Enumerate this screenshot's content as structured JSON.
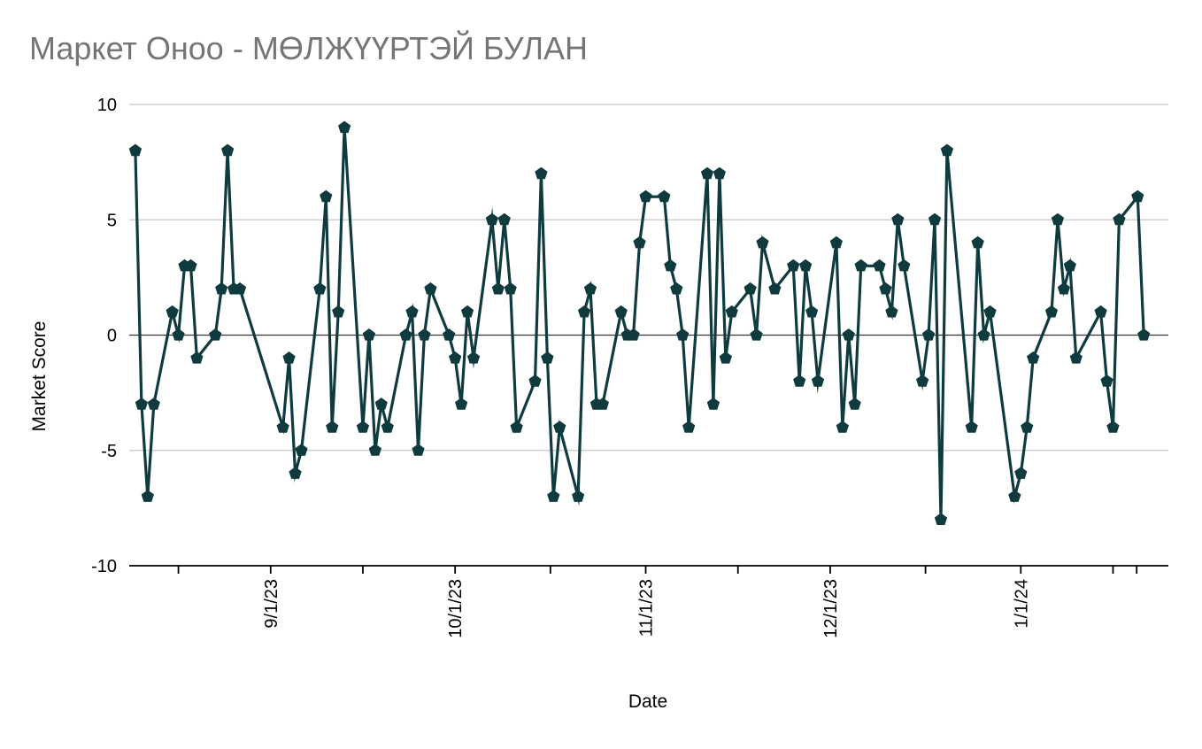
{
  "chart_data": {
    "type": "line",
    "title": "Маркет Оноо - МӨЛЖҮҮРТЭЙ БУЛАН",
    "xlabel": "Date",
    "ylabel": "Market Score",
    "ylim": [
      -10,
      10
    ],
    "y_ticks": [
      10,
      5,
      0,
      -5,
      -10
    ],
    "x_tick_labels": [
      "9/1/23",
      "10/1/23",
      "11/1/23",
      "12/1/23",
      "1/1/24"
    ],
    "x_tick_dates": [
      "2023-09-01",
      "2023-10-01",
      "2023-11-01",
      "2023-12-01",
      "2024-01-01"
    ],
    "x_range": [
      "2023-08-09",
      "2024-01-25"
    ],
    "grid": true,
    "marker": "pentagon",
    "series_color": "#0f3b3f",
    "points": [
      [
        "2023-08-10",
        8
      ],
      [
        "2023-08-11",
        -3
      ],
      [
        "2023-08-12",
        -7
      ],
      [
        "2023-08-13",
        -3
      ],
      [
        "2023-08-16",
        1
      ],
      [
        "2023-08-17",
        0
      ],
      [
        "2023-08-18",
        3
      ],
      [
        "2023-08-19",
        3
      ],
      [
        "2023-08-20",
        -1
      ],
      [
        "2023-08-23",
        0
      ],
      [
        "2023-08-24",
        2
      ],
      [
        "2023-08-25",
        8
      ],
      [
        "2023-08-26",
        2
      ],
      [
        "2023-08-27",
        2
      ],
      [
        "2023-09-03",
        -4
      ],
      [
        "2023-09-04",
        -1
      ],
      [
        "2023-09-05",
        -6
      ],
      [
        "2023-09-06",
        -5
      ],
      [
        "2023-09-09",
        2
      ],
      [
        "2023-09-10",
        6
      ],
      [
        "2023-09-11",
        -4
      ],
      [
        "2023-09-12",
        1
      ],
      [
        "2023-09-13",
        9
      ],
      [
        "2023-09-16",
        -4
      ],
      [
        "2023-09-17",
        0
      ],
      [
        "2023-09-18",
        -5
      ],
      [
        "2023-09-19",
        -3
      ],
      [
        "2023-09-20",
        -4
      ],
      [
        "2023-09-23",
        0
      ],
      [
        "2023-09-24",
        1
      ],
      [
        "2023-09-25",
        -5
      ],
      [
        "2023-09-26",
        0
      ],
      [
        "2023-09-27",
        2
      ],
      [
        "2023-09-30",
        0
      ],
      [
        "2023-10-01",
        -1
      ],
      [
        "2023-10-02",
        -3
      ],
      [
        "2023-10-03",
        1
      ],
      [
        "2023-10-04",
        -1
      ],
      [
        "2023-10-07",
        5
      ],
      [
        "2023-10-08",
        2
      ],
      [
        "2023-10-09",
        5
      ],
      [
        "2023-10-10",
        2
      ],
      [
        "2023-10-11",
        -4
      ],
      [
        "2023-10-14",
        -2
      ],
      [
        "2023-10-15",
        7
      ],
      [
        "2023-10-16",
        -1
      ],
      [
        "2023-10-17",
        -7
      ],
      [
        "2023-10-18",
        -4
      ],
      [
        "2023-10-21",
        -7
      ],
      [
        "2023-10-22",
        1
      ],
      [
        "2023-10-23",
        2
      ],
      [
        "2023-10-24",
        -3
      ],
      [
        "2023-10-25",
        -3
      ],
      [
        "2023-10-28",
        1
      ],
      [
        "2023-10-29",
        0
      ],
      [
        "2023-10-30",
        0
      ],
      [
        "2023-10-31",
        4
      ],
      [
        "2023-11-01",
        6
      ],
      [
        "2023-11-04",
        6
      ],
      [
        "2023-11-05",
        3
      ],
      [
        "2023-11-06",
        2
      ],
      [
        "2023-11-07",
        0
      ],
      [
        "2023-11-08",
        -4
      ],
      [
        "2023-11-11",
        7
      ],
      [
        "2023-11-12",
        -3
      ],
      [
        "2023-11-13",
        7
      ],
      [
        "2023-11-14",
        -1
      ],
      [
        "2023-11-15",
        1
      ],
      [
        "2023-11-18",
        2
      ],
      [
        "2023-11-19",
        0
      ],
      [
        "2023-11-20",
        4
      ],
      [
        "2023-11-22",
        2
      ],
      [
        "2023-11-25",
        3
      ],
      [
        "2023-11-26",
        -2
      ],
      [
        "2023-11-27",
        3
      ],
      [
        "2023-11-28",
        1
      ],
      [
        "2023-11-29",
        -2
      ],
      [
        "2023-12-02",
        4
      ],
      [
        "2023-12-03",
        -4
      ],
      [
        "2023-12-04",
        0
      ],
      [
        "2023-12-05",
        -3
      ],
      [
        "2023-12-06",
        3
      ],
      [
        "2023-12-09",
        3
      ],
      [
        "2023-12-10",
        2
      ],
      [
        "2023-12-11",
        1
      ],
      [
        "2023-12-12",
        5
      ],
      [
        "2023-12-13",
        3
      ],
      [
        "2023-12-16",
        -2
      ],
      [
        "2023-12-17",
        0
      ],
      [
        "2023-12-18",
        5
      ],
      [
        "2023-12-19",
        -8
      ],
      [
        "2023-12-20",
        8
      ],
      [
        "2023-12-24",
        -4
      ],
      [
        "2023-12-25",
        4
      ],
      [
        "2023-12-26",
        0
      ],
      [
        "2023-12-27",
        1
      ],
      [
        "2023-12-31",
        -7
      ],
      [
        "2024-01-01",
        -6
      ],
      [
        "2024-01-02",
        -4
      ],
      [
        "2024-01-03",
        -1
      ],
      [
        "2024-01-06",
        1
      ],
      [
        "2024-01-07",
        5
      ],
      [
        "2024-01-08",
        2
      ],
      [
        "2024-01-09",
        3
      ],
      [
        "2024-01-10",
        -1
      ],
      [
        "2024-01-14",
        1
      ],
      [
        "2024-01-15",
        -2
      ],
      [
        "2024-01-16",
        -4
      ],
      [
        "2024-01-17",
        5
      ],
      [
        "2024-01-20",
        6
      ],
      [
        "2024-01-21",
        0
      ]
    ]
  }
}
